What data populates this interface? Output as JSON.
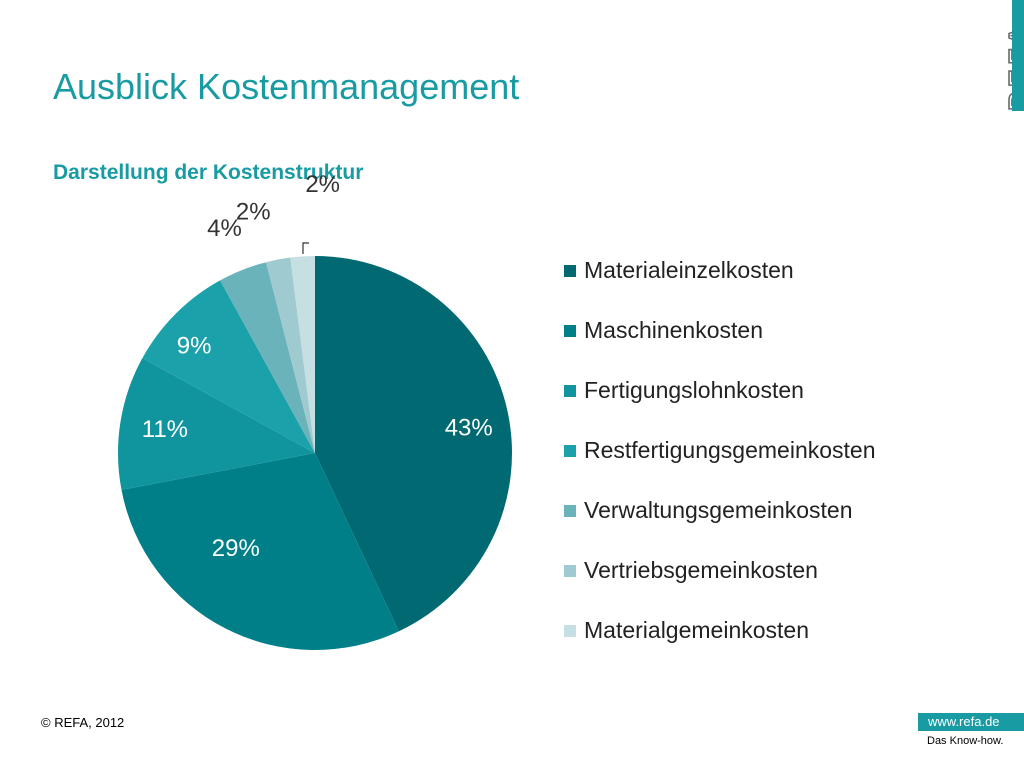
{
  "slide": {
    "title": "Ausblick Kostenmanagement",
    "subtitle": "Darstellung der Kostenstruktur",
    "logo_text": "REFA",
    "copyright": "© REFA, 2012",
    "website": "www.refa.de",
    "tagline": "Das Know-how.",
    "accent_color": "#199ba4"
  },
  "chart_data": {
    "type": "pie",
    "categories": [
      "Materialeinzelkosten",
      "Maschinenkosten",
      "Fertigungslohnkosten",
      "Restfertigungsgemeinkosten",
      "Verwaltungsgemeinkosten",
      "Vertriebsgemeinkosten",
      "Materialgemeinkosten"
    ],
    "values": [
      43,
      29,
      11,
      9,
      4,
      2,
      2
    ],
    "labels": [
      "43%",
      "29%",
      "11%",
      "9%",
      "4%",
      "2%",
      "2%"
    ],
    "colors": [
      "#006971",
      "#007f88",
      "#10959e",
      "#1aa1a9",
      "#6bb3bb",
      "#9fcbd0",
      "#c6dfe2"
    ],
    "start_angle": "12 o'clock",
    "direction": "clockwise",
    "legend_position": "right"
  }
}
